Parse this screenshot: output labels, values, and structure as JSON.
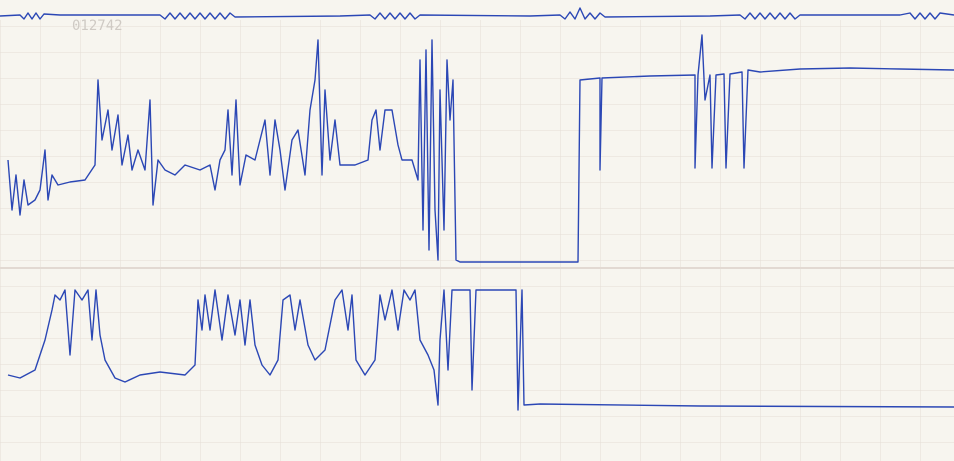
{
  "header": {
    "serial": "012742"
  }
}
